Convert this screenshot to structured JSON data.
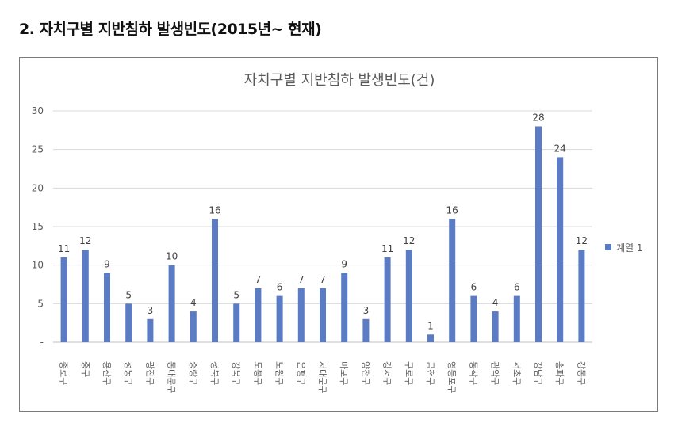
{
  "heading": "2. 자치구별 지반침하 발생빈도(2015년~ 현재)",
  "chart_data": {
    "type": "bar",
    "title": "자치구별 지반침하 발생빈도(건)",
    "categories": [
      "종로구",
      "중구",
      "용산구",
      "성동구",
      "광진구",
      "동대문구",
      "중랑구",
      "성북구",
      "강북구",
      "도봉구",
      "노원구",
      "은평구",
      "서대문구",
      "마포구",
      "양천구",
      "강서구",
      "구로구",
      "금천구",
      "영등포구",
      "동작구",
      "관악구",
      "서초구",
      "강남구",
      "송파구",
      "강동구"
    ],
    "series": [
      {
        "name": "계열 1",
        "values": [
          11,
          12,
          9,
          5,
          3,
          10,
          4,
          16,
          5,
          7,
          6,
          7,
          7,
          9,
          3,
          11,
          12,
          1,
          16,
          6,
          4,
          6,
          28,
          24,
          12
        ]
      }
    ],
    "ylim": [
      0,
      30
    ],
    "yticks": [
      "-",
      "5",
      "10",
      "15",
      "20",
      "25",
      "30"
    ],
    "grid": true,
    "legend": "right",
    "bar_color": "#5b7cc4",
    "grid_color": "#d9d9d9"
  }
}
